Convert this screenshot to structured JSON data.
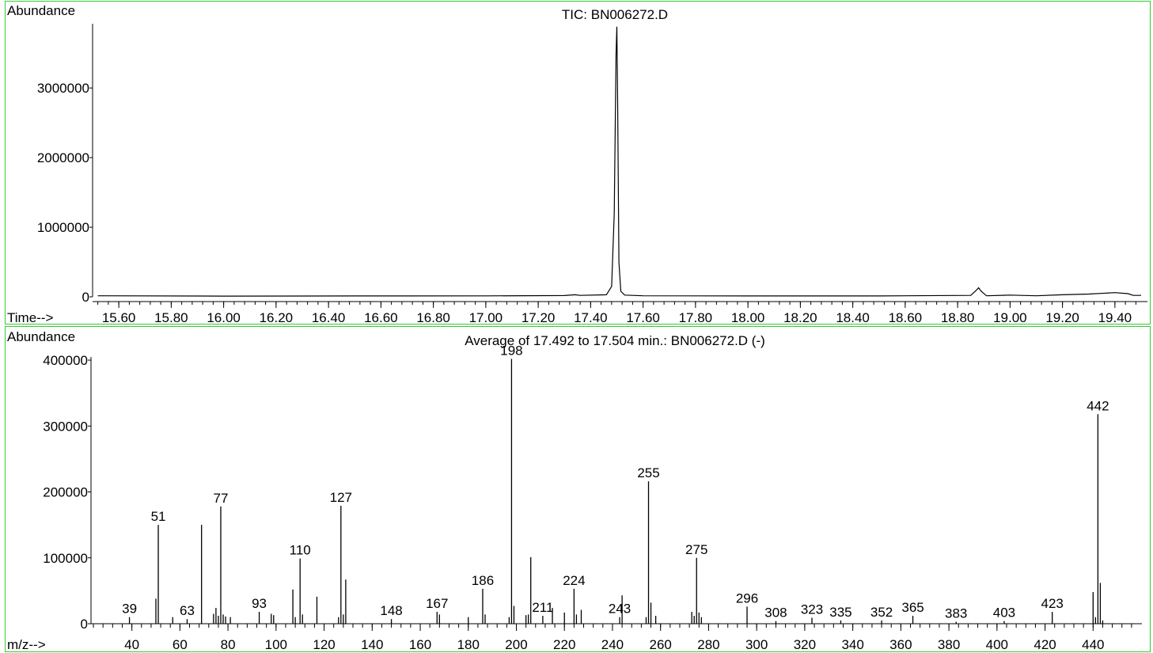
{
  "chart_data": [
    {
      "type": "line",
      "title": "TIC: BN006272.D",
      "ylabel": "Abundance",
      "xlabel": "Time-->",
      "xlim": [
        15.5,
        19.5
      ],
      "ylim": [
        0,
        3900000
      ],
      "x_ticks": [
        "15.60",
        "15.80",
        "16.00",
        "16.20",
        "16.40",
        "16.60",
        "16.80",
        "17.00",
        "17.20",
        "17.40",
        "17.60",
        "17.80",
        "18.00",
        "18.20",
        "18.40",
        "18.60",
        "18.80",
        "19.00",
        "19.20",
        "19.40"
      ],
      "y_ticks": [
        "0",
        "1000000",
        "2000000",
        "3000000"
      ],
      "series": [
        {
          "x": [
            15.52,
            16.0,
            16.5,
            17.0,
            17.3,
            17.34,
            17.36,
            17.46,
            17.48,
            17.49,
            17.497,
            17.5,
            17.503,
            17.508,
            17.515,
            17.53,
            17.6,
            18.0,
            18.5,
            18.85,
            18.87,
            18.88,
            18.89,
            18.91,
            19.0,
            19.1,
            19.2,
            19.3,
            19.4,
            19.45,
            19.47,
            19.5
          ],
          "y": [
            15000,
            10000,
            12000,
            14000,
            18000,
            30000,
            20000,
            30000,
            150000,
            1200000,
            3500000,
            3880000,
            2800000,
            500000,
            80000,
            25000,
            15000,
            12000,
            12000,
            20000,
            90000,
            130000,
            80000,
            15000,
            25000,
            15000,
            30000,
            40000,
            60000,
            45000,
            20000,
            20000
          ]
        }
      ]
    },
    {
      "type": "bar",
      "title": "Average of 17.492 to 17.504 min.: BN006272.D (-)",
      "ylabel": "Abundance",
      "xlabel": "m/z-->",
      "xlim": [
        23,
        459
      ],
      "ylim": [
        0,
        400000
      ],
      "x_ticks": [
        "40",
        "60",
        "80",
        "100",
        "120",
        "140",
        "160",
        "180",
        "200",
        "220",
        "240",
        "260",
        "280",
        "300",
        "320",
        "340",
        "360",
        "380",
        "400",
        "420",
        "440"
      ],
      "y_ticks": [
        "0",
        "100000",
        "200000",
        "300000",
        "400000"
      ],
      "peaks": [
        {
          "mz": 39,
          "value": 10000,
          "label": "39"
        },
        {
          "mz": 50,
          "value": 38000
        },
        {
          "mz": 51,
          "value": 150000,
          "label": "51"
        },
        {
          "mz": 57,
          "value": 10000
        },
        {
          "mz": 63,
          "value": 7000,
          "label": "63"
        },
        {
          "mz": 69,
          "value": 150000
        },
        {
          "mz": 74,
          "value": 15000
        },
        {
          "mz": 75,
          "value": 24000
        },
        {
          "mz": 76,
          "value": 12000
        },
        {
          "mz": 77,
          "value": 178000,
          "label": "77"
        },
        {
          "mz": 78,
          "value": 14000
        },
        {
          "mz": 79,
          "value": 11000
        },
        {
          "mz": 81,
          "value": 10000
        },
        {
          "mz": 93,
          "value": 18000,
          "label": "93"
        },
        {
          "mz": 98,
          "value": 15000
        },
        {
          "mz": 99,
          "value": 13000
        },
        {
          "mz": 107,
          "value": 52000
        },
        {
          "mz": 108,
          "value": 10000
        },
        {
          "mz": 110,
          "value": 99000,
          "label": "110"
        },
        {
          "mz": 111,
          "value": 14000
        },
        {
          "mz": 117,
          "value": 41000
        },
        {
          "mz": 126,
          "value": 10000
        },
        {
          "mz": 127,
          "value": 179000,
          "label": "127"
        },
        {
          "mz": 128,
          "value": 14000
        },
        {
          "mz": 129,
          "value": 67000
        },
        {
          "mz": 148,
          "value": 7000,
          "label": "148"
        },
        {
          "mz": 167,
          "value": 18000,
          "label": "167"
        },
        {
          "mz": 168,
          "value": 14000
        },
        {
          "mz": 180,
          "value": 10000
        },
        {
          "mz": 186,
          "value": 53000,
          "label": "186"
        },
        {
          "mz": 187,
          "value": 14000
        },
        {
          "mz": 197,
          "value": 10000
        },
        {
          "mz": 198,
          "value": 402000,
          "label": "198"
        },
        {
          "mz": 199,
          "value": 27000
        },
        {
          "mz": 204,
          "value": 13000
        },
        {
          "mz": 205,
          "value": 14000
        },
        {
          "mz": 206,
          "value": 101000
        },
        {
          "mz": 211,
          "value": 12000,
          "label": "211"
        },
        {
          "mz": 215,
          "value": 24000
        },
        {
          "mz": 220,
          "value": 17000
        },
        {
          "mz": 224,
          "value": 53000,
          "label": "224"
        },
        {
          "mz": 225,
          "value": 14000
        },
        {
          "mz": 227,
          "value": 21000
        },
        {
          "mz": 243,
          "value": 10000,
          "label": "243"
        },
        {
          "mz": 244,
          "value": 43000
        },
        {
          "mz": 254,
          "value": 10000
        },
        {
          "mz": 255,
          "value": 216000,
          "label": "255"
        },
        {
          "mz": 256,
          "value": 32000
        },
        {
          "mz": 258,
          "value": 12000
        },
        {
          "mz": 273,
          "value": 18000
        },
        {
          "mz": 274,
          "value": 12000
        },
        {
          "mz": 275,
          "value": 100000,
          "label": "275"
        },
        {
          "mz": 276,
          "value": 17000
        },
        {
          "mz": 277,
          "value": 10000
        },
        {
          "mz": 296,
          "value": 26000,
          "label": "296"
        },
        {
          "mz": 308,
          "value": 4000,
          "label": "308"
        },
        {
          "mz": 323,
          "value": 9000,
          "label": "323"
        },
        {
          "mz": 335,
          "value": 5000,
          "label": "335"
        },
        {
          "mz": 352,
          "value": 5000,
          "label": "352"
        },
        {
          "mz": 365,
          "value": 12000,
          "label": "365"
        },
        {
          "mz": 383,
          "value": 3000,
          "label": "383"
        },
        {
          "mz": 403,
          "value": 4000,
          "label": "403"
        },
        {
          "mz": 423,
          "value": 18000,
          "label": "423"
        },
        {
          "mz": 440,
          "value": 48000
        },
        {
          "mz": 441,
          "value": 10000
        },
        {
          "mz": 442,
          "value": 318000,
          "label": "442"
        },
        {
          "mz": 443,
          "value": 62000
        },
        {
          "mz": 444,
          "value": 5000
        }
      ]
    }
  ]
}
